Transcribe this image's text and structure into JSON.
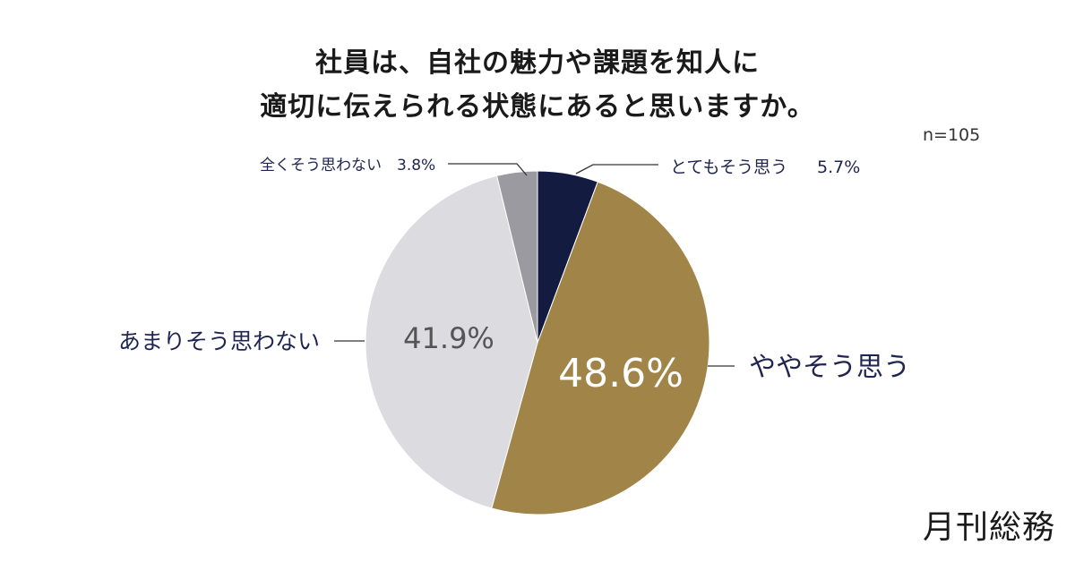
{
  "brand_logo": "月刊総務",
  "chart_data": {
    "type": "pie",
    "title_lines": [
      "社員は、自社の魅力や課題を知人に",
      "適切に伝えられる状態にあると思いますか。"
    ],
    "sample_size": "n=105",
    "start_angle": "12 o'clock",
    "direction": "clockwise",
    "slices": [
      {
        "label": "とてもそう思う",
        "value": 5.7,
        "value_text": "5.7%",
        "color": "#141b41"
      },
      {
        "label": "ややそう思う",
        "value": 48.6,
        "value_text": "48.6%",
        "color": "#a08448"
      },
      {
        "label": "あまりそう思わない",
        "value": 41.9,
        "value_text": "41.9%",
        "color": "#dcdbe0"
      },
      {
        "label": "全くそう思わない",
        "value": 3.8,
        "value_text": "3.8%",
        "color": "#9b9aa0"
      }
    ]
  }
}
